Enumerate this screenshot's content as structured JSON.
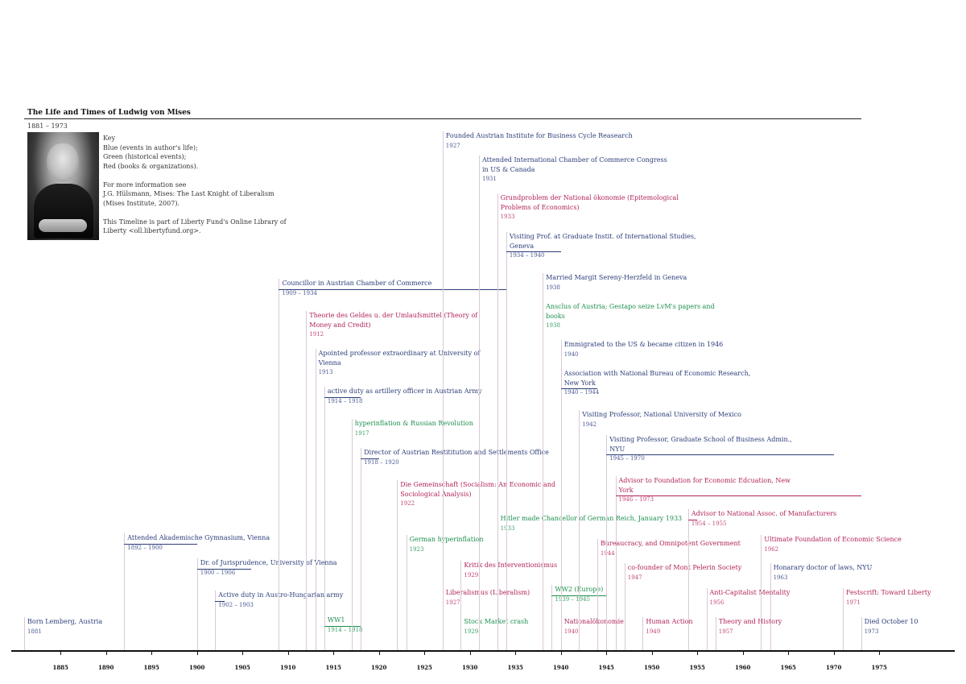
{
  "title": "The Life and Times of Ludwig von Mises",
  "subtitle": "1881 – 1973",
  "photo_caption": "",
  "key": [
    "Key",
    "Blue (events in author's life);",
    "Green (historical events);",
    "Red (books & organizations).",
    "",
    "For more information see",
    "J.G. Hülsmann, Mises: The Last Knight of Liberalism",
    "(Mises Institute, 2007).",
    "",
    "This Timeline is part of Liberty Fund's Online Library of",
    "Liberty <oll.libertyfund.org>."
  ],
  "colors": {
    "blue": "#2c3e7a",
    "green": "#1d8f4e",
    "red": "#b0235a",
    "stem": "#d9c9d6"
  },
  "axis": {
    "start": 1881,
    "ticks": [
      1885,
      1890,
      1895,
      1900,
      1905,
      1910,
      1915,
      1920,
      1925,
      1930,
      1935,
      1940,
      1945,
      1950,
      1955,
      1960,
      1965,
      1970,
      1975
    ]
  },
  "events": [
    {
      "label": "Born Lemberg, Austria",
      "years": "1881",
      "start": 1881,
      "color": "blue"
    },
    {
      "label": "Attended Akademische Gymnasium, Vienna",
      "years": "1892 – 1900",
      "start": 1892,
      "end": 1900,
      "color": "blue"
    },
    {
      "label": "Dr. of Jurisprudence, University of Vienna",
      "years": "1900 – 1906",
      "start": 1900,
      "end": 1906,
      "color": "blue"
    },
    {
      "label": "Active duty in Austro-Hungarian army",
      "years": "1902 – 1903",
      "start": 1902,
      "end": 1903,
      "color": "blue"
    },
    {
      "label": "Councillor in Austrian Chamber of Commerce",
      "years": "1909 – 1934",
      "start": 1909,
      "end": 1934,
      "color": "blue"
    },
    {
      "label": "Theorie des Geldes u. der Umlaufsmittel (Theory of",
      "label2": "Money and Credit)",
      "years": "1912",
      "start": 1912,
      "color": "red"
    },
    {
      "label": "Apointed professor extraordinary at University of",
      "label2": "Vienna",
      "years": "1913",
      "start": 1913,
      "color": "blue"
    },
    {
      "label": "active duty as artillery officer in Austrian Army",
      "years": "1914 – 1918",
      "start": 1914,
      "end": 1918,
      "color": "blue"
    },
    {
      "label": "WW1",
      "years": "1914 – 1918",
      "start": 1914,
      "end": 1918,
      "color": "green"
    },
    {
      "label": "hyperinflation & Russian Revolution",
      "years": "1917",
      "start": 1917,
      "color": "green"
    },
    {
      "label": "Director of Austrian Restititution and Settlements Office",
      "years": "1918 – 1920",
      "start": 1918,
      "end": 1920,
      "color": "blue"
    },
    {
      "label": "Die Gemeinschaft (Socialism: An Economic and",
      "label2": "Sociological Analysis)",
      "years": "1922",
      "start": 1922,
      "color": "red"
    },
    {
      "label": "German hyperinflation",
      "years": "1923",
      "start": 1923,
      "color": "green"
    },
    {
      "label": "Founded Austrian Institute for Business Cycle Reasearch",
      "years": "1927",
      "start": 1927,
      "color": "blue"
    },
    {
      "label": "Liberalismus (Liberalism)",
      "years": "1927",
      "start": 1927,
      "color": "red"
    },
    {
      "label": "Kritik des Interventionismus",
      "years": "1929",
      "start": 1929,
      "color": "red"
    },
    {
      "label": "Stock Market crash",
      "years": "1929",
      "start": 1929,
      "color": "green"
    },
    {
      "label": "Attended International Chamber of Commerce Congress",
      "label2": "in US & Canada",
      "years": "1931",
      "start": 1931,
      "color": "blue"
    },
    {
      "label": "Grundproblem der National ökonomie (Epitemological",
      "label2": "Problems of Economics)",
      "years": "1933",
      "start": 1933,
      "color": "red"
    },
    {
      "label": "Hitler made Chancellor of German Reich, January 1933",
      "years": "1933",
      "start": 1933,
      "color": "green"
    },
    {
      "label": "Visiting Prof. at Graduate Instit. of International Studies,",
      "label2": "Geneva",
      "years": "1934 – 1940",
      "start": 1934,
      "end": 1940,
      "color": "blue"
    },
    {
      "label": "Married Margit Sereny-Herzfeld in Geneva",
      "years": "1938",
      "start": 1938,
      "color": "blue"
    },
    {
      "label": "Ansclus of Austria; Gestapo seize LvM's papers and",
      "label2": "books",
      "years": "1938",
      "start": 1938,
      "color": "green"
    },
    {
      "label": "WW2 (Europe)",
      "years": "1939 – 1945",
      "start": 1939,
      "end": 1945,
      "color": "green"
    },
    {
      "label": "Emmigrated to the US & became citizen in 1946",
      "years": "1940",
      "start": 1940,
      "color": "blue"
    },
    {
      "label": "Association with National Bureau of Economic Research,",
      "label2": "New York",
      "years": "1940 – 1944",
      "start": 1940,
      "end": 1944,
      "color": "blue"
    },
    {
      "label": "Nationalökonomie",
      "years": "1940",
      "start": 1940,
      "color": "red"
    },
    {
      "label": "Visiting Professor, National University of Mexico",
      "years": "1942",
      "start": 1942,
      "color": "blue"
    },
    {
      "label": "Bureaucracy, and Omnipotent Government",
      "years": "1944",
      "start": 1944,
      "color": "red"
    },
    {
      "label": "Visiting Professor, Graduate School of Business Admin.,",
      "label2": "NYU",
      "years": "1945 – 1970",
      "start": 1945,
      "end": 1970,
      "color": "blue"
    },
    {
      "label": "Advisor to Foundation for Economic Edcuation, New",
      "label2": "York",
      "years": "1946 – 1973",
      "start": 1946,
      "end": 1973,
      "color": "red"
    },
    {
      "label": "co-founder of Mont Pelerin Society",
      "years": "1947",
      "start": 1947,
      "color": "red"
    },
    {
      "label": "Human Action",
      "years": "1949",
      "start": 1949,
      "color": "red"
    },
    {
      "label": "Advisor to National Assoc. of Manufacturers",
      "years": "1954 – 1955",
      "start": 1954,
      "end": 1955,
      "color": "red"
    },
    {
      "label": "Anti-Capitalist Mentality",
      "years": "1956",
      "start": 1956,
      "color": "red"
    },
    {
      "label": "Theory and History",
      "years": "1957",
      "start": 1957,
      "color": "red"
    },
    {
      "label": "Ultimate Foundation of Economic Science",
      "years": "1962",
      "start": 1962,
      "color": "red"
    },
    {
      "label": "Honarary  doctor of laws, NYU",
      "years": "1963",
      "start": 1963,
      "color": "blue"
    },
    {
      "label": "Festscrift: Toward Liberty",
      "years": "1971",
      "start": 1971,
      "color": "red"
    },
    {
      "label": "Died October 10",
      "years": "1973",
      "start": 1973,
      "color": "blue"
    }
  ]
}
